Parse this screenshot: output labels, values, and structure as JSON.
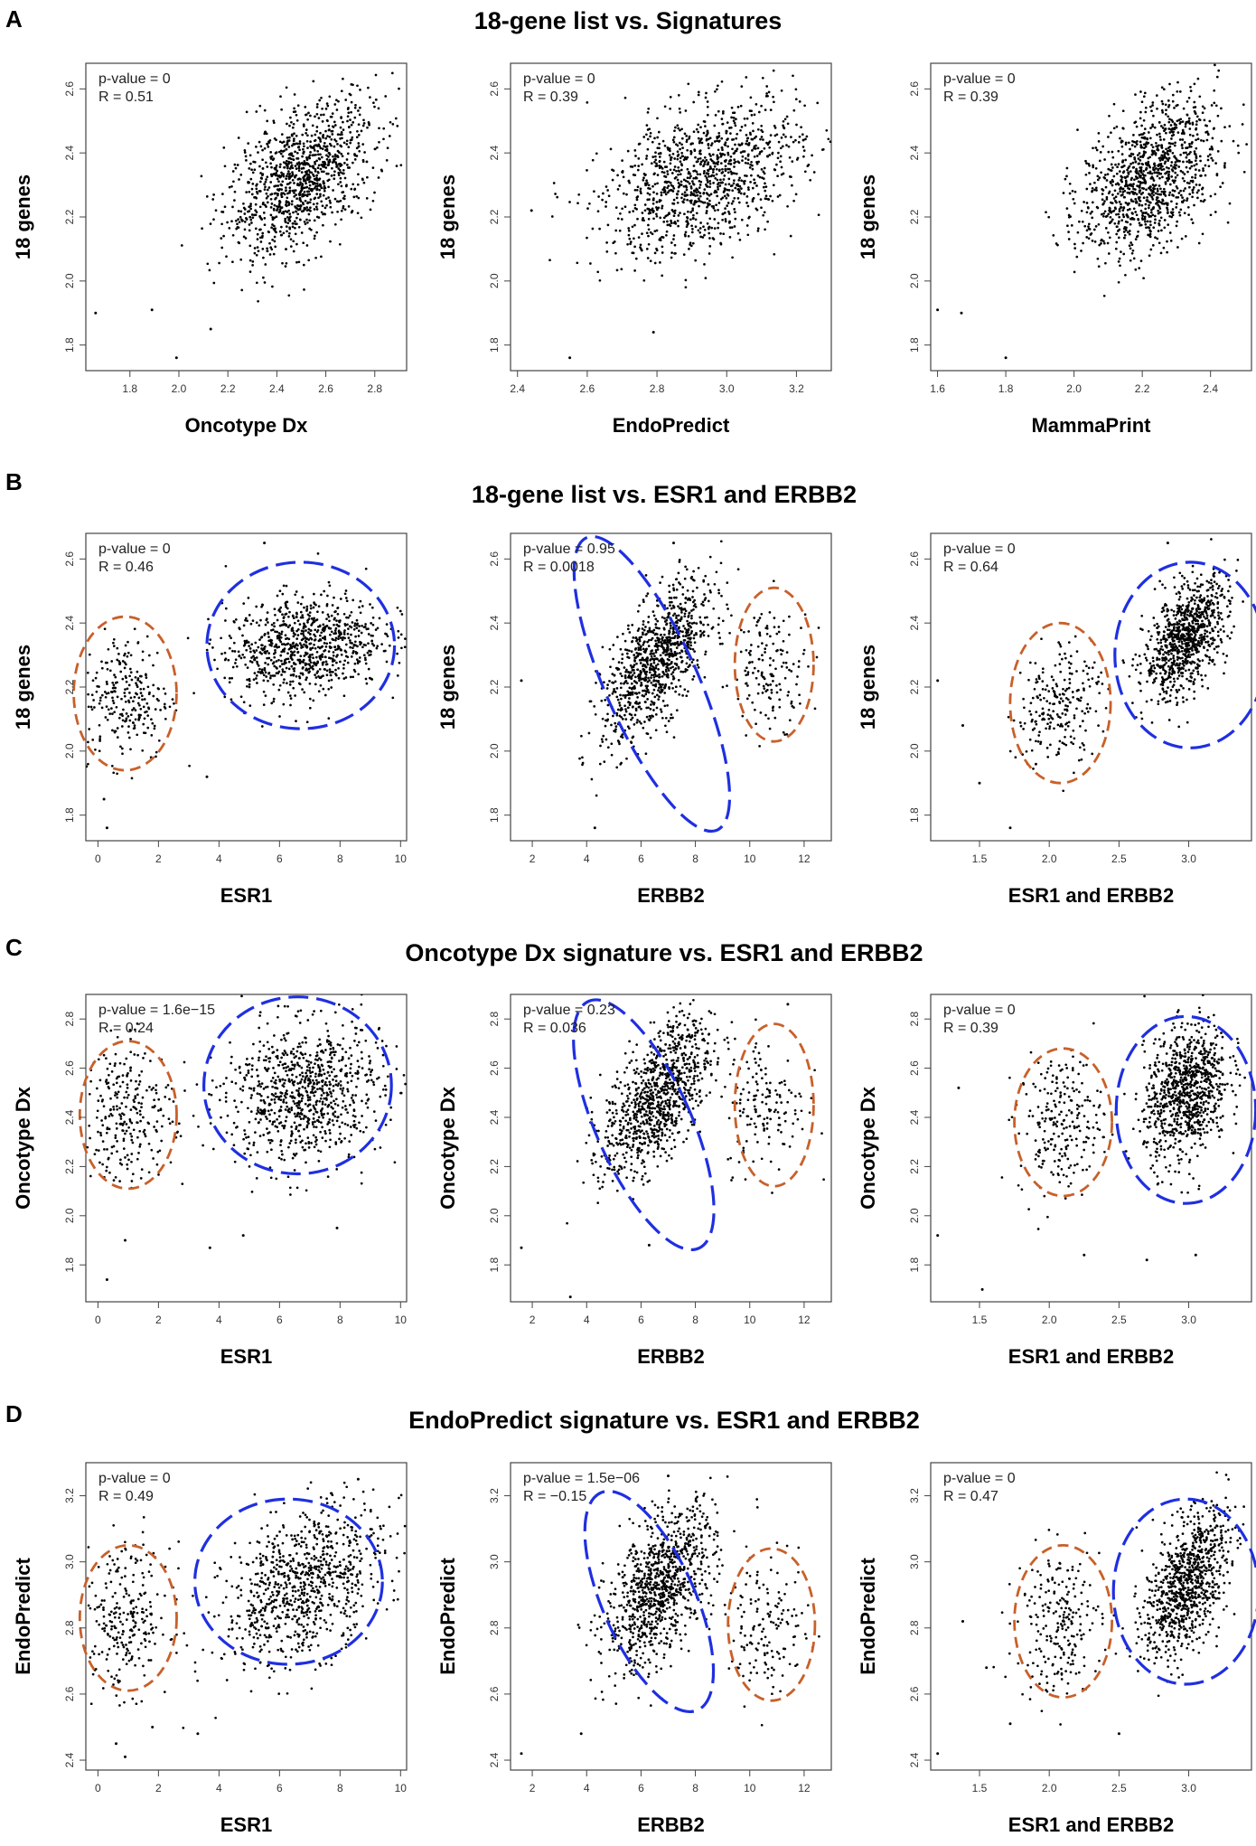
{
  "figure": {
    "rows": [
      {
        "letter": "A",
        "title": "18-gene list vs. Signatures"
      },
      {
        "letter": "B",
        "title": "18-gene list vs. ESR1 and ERBB2"
      },
      {
        "letter": "C",
        "title": "Oncotype Dx signature vs. ESR1 and ERBB2"
      },
      {
        "letter": "D",
        "title": "EndoPredict signature vs. ESR1 and ERBB2"
      }
    ]
  },
  "colors": {
    "point": "#000000",
    "blue_cluster": "#1f2fe0",
    "orange_cluster": "#c8602a",
    "frame": "#444444"
  },
  "chart_data": [
    {
      "type": "scatter",
      "row": 0,
      "col": 0,
      "xlabel": "Oncotype Dx",
      "ylabel": "18 genes",
      "xlim": [
        1.62,
        2.93
      ],
      "ylim": [
        1.72,
        2.68
      ],
      "xticks": [
        "1.8",
        "2.0",
        "2.2",
        "2.4",
        "2.6",
        "2.8"
      ],
      "xtick_values": [
        1.8,
        2.0,
        2.2,
        2.4,
        2.6,
        2.8
      ],
      "yticks": [
        "1.8",
        "2.0",
        "2.2",
        "2.4",
        "2.6"
      ],
      "ytick_values": [
        1.8,
        2.0,
        2.2,
        2.4,
        2.6
      ],
      "annotations": [
        "p-value = 0",
        "R = 0.51"
      ],
      "clusters": [
        {
          "name": "main",
          "n": 1100,
          "cx": 2.5,
          "cy": 2.32,
          "sx": 0.15,
          "sy": 0.12,
          "rho": 0.5
        }
      ],
      "outliers": [
        [
          1.66,
          1.9
        ],
        [
          1.89,
          1.91
        ],
        [
          1.99,
          1.76
        ],
        [
          2.13,
          1.85
        ]
      ]
    },
    {
      "type": "scatter",
      "row": 0,
      "col": 1,
      "xlabel": "EndoPredict",
      "ylabel": "18 genes",
      "xlim": [
        2.38,
        3.3
      ],
      "ylim": [
        1.72,
        2.68
      ],
      "xticks": [
        "2.4",
        "2.6",
        "2.8",
        "3.0",
        "3.2"
      ],
      "xtick_values": [
        2.4,
        2.6,
        2.8,
        3.0,
        3.2
      ],
      "yticks": [
        "1.8",
        "2.0",
        "2.2",
        "2.4",
        "2.6"
      ],
      "ytick_values": [
        1.8,
        2.0,
        2.2,
        2.4,
        2.6
      ],
      "annotations": [
        "p-value = 0",
        "R = 0.39"
      ],
      "clusters": [
        {
          "name": "main",
          "n": 1100,
          "cx": 2.93,
          "cy": 2.32,
          "sx": 0.14,
          "sy": 0.12,
          "rho": 0.4
        }
      ],
      "outliers": [
        [
          2.55,
          1.76
        ],
        [
          2.44,
          2.22
        ],
        [
          2.79,
          1.84
        ],
        [
          3.22,
          2.44
        ]
      ]
    },
    {
      "type": "scatter",
      "row": 0,
      "col": 2,
      "xlabel": "MammaPrint",
      "ylabel": "18 genes",
      "xlim": [
        1.58,
        2.52
      ],
      "ylim": [
        1.72,
        2.68
      ],
      "xticks": [
        "1.6",
        "1.8",
        "2.0",
        "2.2",
        "2.4"
      ],
      "xtick_values": [
        1.6,
        1.8,
        2.0,
        2.2,
        2.4
      ],
      "yticks": [
        "1.8",
        "2.0",
        "2.2",
        "2.4",
        "2.6"
      ],
      "ytick_values": [
        1.8,
        2.0,
        2.2,
        2.4,
        2.6
      ],
      "annotations": [
        "p-value = 0",
        "R = 0.39"
      ],
      "clusters": [
        {
          "name": "main",
          "n": 1100,
          "cx": 2.22,
          "cy": 2.32,
          "sx": 0.1,
          "sy": 0.12,
          "rho": 0.4
        }
      ],
      "outliers": [
        [
          1.6,
          1.91
        ],
        [
          1.67,
          1.9
        ],
        [
          1.8,
          1.76
        ]
      ]
    },
    {
      "type": "scatter",
      "row": 1,
      "col": 0,
      "xlabel": "ESR1",
      "ylabel": "18 genes",
      "xlim": [
        -0.4,
        10.2
      ],
      "ylim": [
        1.72,
        2.68
      ],
      "xticks": [
        "0",
        "2",
        "4",
        "6",
        "8",
        "10"
      ],
      "xtick_values": [
        0,
        2,
        4,
        6,
        8,
        10
      ],
      "yticks": [
        "1.8",
        "2.0",
        "2.2",
        "2.4",
        "2.6"
      ],
      "ytick_values": [
        1.8,
        2.0,
        2.2,
        2.4,
        2.6
      ],
      "annotations": [
        "p-value = 0",
        "R = 0.46"
      ],
      "clusters": [
        {
          "name": "low",
          "n": 260,
          "cx": 0.9,
          "cy": 2.17,
          "sx": 0.75,
          "sy": 0.1,
          "rho": 0.0
        },
        {
          "name": "high",
          "n": 850,
          "cx": 6.8,
          "cy": 2.33,
          "sx": 1.3,
          "sy": 0.08,
          "rho": 0.2
        }
      ],
      "outliers": [
        [
          0.3,
          1.76
        ],
        [
          0.2,
          1.85
        ],
        [
          3.6,
          1.92
        ],
        [
          5.5,
          2.65
        ]
      ],
      "ellipses": [
        {
          "color": "orange",
          "cx": 0.9,
          "cy": 2.18,
          "rx": 1.7,
          "ry": 0.24,
          "angle": 0
        },
        {
          "color": "blue",
          "cx": 6.7,
          "cy": 2.33,
          "rx": 3.1,
          "ry": 0.26,
          "angle": 0
        }
      ]
    },
    {
      "type": "scatter",
      "row": 1,
      "col": 1,
      "xlabel": "ERBB2",
      "ylabel": "18 genes",
      "xlim": [
        1.2,
        13.0
      ],
      "ylim": [
        1.72,
        2.68
      ],
      "xticks": [
        "2",
        "4",
        "6",
        "8",
        "10",
        "12"
      ],
      "xtick_values": [
        2,
        4,
        6,
        8,
        10,
        12
      ],
      "yticks": [
        "1.8",
        "2.0",
        "2.2",
        "2.4",
        "2.6"
      ],
      "ytick_values": [
        1.8,
        2.0,
        2.2,
        2.4,
        2.6
      ],
      "annotations": [
        "p-value = 0.95",
        "R = 0.0018"
      ],
      "clusters": [
        {
          "name": "main",
          "n": 960,
          "cx": 6.6,
          "cy": 2.28,
          "sx": 1.0,
          "sy": 0.12,
          "rho": 0.65
        },
        {
          "name": "amplified",
          "n": 150,
          "cx": 10.8,
          "cy": 2.26,
          "sx": 0.7,
          "sy": 0.09,
          "rho": 0.0
        }
      ],
      "outliers": [
        [
          1.6,
          2.22
        ],
        [
          4.3,
          1.76
        ],
        [
          7.2,
          2.65
        ]
      ],
      "ellipses": [
        {
          "color": "blue",
          "cx": 6.4,
          "cy": 2.21,
          "rx": 1.7,
          "ry": 0.5,
          "angle": 0.42
        },
        {
          "color": "orange",
          "cx": 10.9,
          "cy": 2.27,
          "rx": 1.45,
          "ry": 0.24,
          "angle": 0
        }
      ]
    },
    {
      "type": "scatter",
      "row": 1,
      "col": 2,
      "xlabel": "ESR1 and ERBB2",
      "ylabel": "18 genes",
      "xlim": [
        1.15,
        3.45
      ],
      "ylim": [
        1.72,
        2.68
      ],
      "xticks": [
        "1.5",
        "2.0",
        "2.5",
        "3.0"
      ],
      "xtick_values": [
        1.5,
        2.0,
        2.5,
        3.0
      ],
      "yticks": [
        "1.8",
        "2.0",
        "2.2",
        "2.4",
        "2.6"
      ],
      "ytick_values": [
        1.8,
        2.0,
        2.2,
        2.4,
        2.6
      ],
      "annotations": [
        "p-value = 0",
        "R = 0.64"
      ],
      "clusters": [
        {
          "name": "low",
          "n": 230,
          "cx": 2.07,
          "cy": 2.15,
          "sx": 0.15,
          "sy": 0.1,
          "rho": 0.3
        },
        {
          "name": "high",
          "n": 880,
          "cx": 2.98,
          "cy": 2.35,
          "sx": 0.15,
          "sy": 0.09,
          "rho": 0.5
        }
      ],
      "outliers": [
        [
          1.2,
          2.22
        ],
        [
          1.38,
          2.08
        ],
        [
          1.5,
          1.9
        ],
        [
          1.72,
          1.76
        ],
        [
          2.85,
          2.65
        ]
      ],
      "ellipses": [
        {
          "color": "orange",
          "cx": 2.08,
          "cy": 2.15,
          "rx": 0.36,
          "ry": 0.25,
          "angle": 0
        },
        {
          "color": "blue",
          "cx": 3.01,
          "cy": 2.3,
          "rx": 0.54,
          "ry": 0.29,
          "angle": 0
        }
      ]
    },
    {
      "type": "scatter",
      "row": 2,
      "col": 0,
      "xlabel": "ESR1",
      "ylabel": "Oncotype Dx",
      "xlim": [
        -0.4,
        10.2
      ],
      "ylim": [
        1.65,
        2.9
      ],
      "xticks": [
        "0",
        "2",
        "4",
        "6",
        "8",
        "10"
      ],
      "xtick_values": [
        0,
        2,
        4,
        6,
        8,
        10
      ],
      "yticks": [
        "1.8",
        "2.0",
        "2.2",
        "2.4",
        "2.6",
        "2.8"
      ],
      "ytick_values": [
        1.8,
        2.0,
        2.2,
        2.4,
        2.6,
        2.8
      ],
      "annotations": [
        "p-value = 1.6e−15",
        "R = 0.24"
      ],
      "clusters": [
        {
          "name": "low",
          "n": 260,
          "cx": 1.0,
          "cy": 2.42,
          "sx": 0.75,
          "sy": 0.14,
          "rho": 0.0
        },
        {
          "name": "high",
          "n": 850,
          "cx": 6.8,
          "cy": 2.5,
          "sx": 1.3,
          "sy": 0.14,
          "rho": 0.1
        }
      ],
      "outliers": [
        [
          0.3,
          1.74
        ],
        [
          0.9,
          1.9
        ],
        [
          3.7,
          1.87
        ],
        [
          4.8,
          1.92
        ],
        [
          7.9,
          1.95
        ]
      ],
      "ellipses": [
        {
          "color": "orange",
          "cx": 1.0,
          "cy": 2.41,
          "rx": 1.6,
          "ry": 0.3,
          "angle": 0
        },
        {
          "color": "blue",
          "cx": 6.6,
          "cy": 2.53,
          "rx": 3.1,
          "ry": 0.36,
          "angle": 0
        }
      ]
    },
    {
      "type": "scatter",
      "row": 2,
      "col": 1,
      "xlabel": "ERBB2",
      "ylabel": "Oncotype Dx",
      "xlim": [
        1.2,
        13.0
      ],
      "ylim": [
        1.65,
        2.9
      ],
      "xticks": [
        "2",
        "4",
        "6",
        "8",
        "10",
        "12"
      ],
      "xtick_values": [
        2,
        4,
        6,
        8,
        10,
        12
      ],
      "yticks": [
        "1.8",
        "2.0",
        "2.2",
        "2.4",
        "2.6",
        "2.8"
      ],
      "ytick_values": [
        1.8,
        2.0,
        2.2,
        2.4,
        2.6,
        2.8
      ],
      "annotations": [
        "p-value = 0.23",
        "R = 0.036"
      ],
      "clusters": [
        {
          "name": "main",
          "n": 960,
          "cx": 6.6,
          "cy": 2.48,
          "sx": 1.0,
          "sy": 0.16,
          "rho": 0.6
        },
        {
          "name": "amplified",
          "n": 150,
          "cx": 10.6,
          "cy": 2.45,
          "sx": 0.75,
          "sy": 0.14,
          "rho": 0.0
        }
      ],
      "outliers": [
        [
          1.6,
          1.87
        ],
        [
          3.4,
          1.67
        ],
        [
          6.3,
          1.88
        ],
        [
          11.4,
          2.86
        ]
      ],
      "ellipses": [
        {
          "color": "blue",
          "cx": 6.1,
          "cy": 2.37,
          "rx": 1.75,
          "ry": 0.55,
          "angle": 0.42
        },
        {
          "color": "orange",
          "cx": 10.9,
          "cy": 2.45,
          "rx": 1.45,
          "ry": 0.33,
          "angle": 0
        }
      ]
    },
    {
      "type": "scatter",
      "row": 2,
      "col": 2,
      "xlabel": "ESR1 and ERBB2",
      "ylabel": "Oncotype Dx",
      "xlim": [
        1.15,
        3.45
      ],
      "ylim": [
        1.65,
        2.9
      ],
      "xticks": [
        "1.5",
        "2.0",
        "2.5",
        "3.0"
      ],
      "xtick_values": [
        1.5,
        2.0,
        2.5,
        3.0
      ],
      "yticks": [
        "1.8",
        "2.0",
        "2.2",
        "2.4",
        "2.6",
        "2.8"
      ],
      "ytick_values": [
        1.8,
        2.0,
        2.2,
        2.4,
        2.6,
        2.8
      ],
      "annotations": [
        "p-value = 0",
        "R = 0.39"
      ],
      "clusters": [
        {
          "name": "low",
          "n": 230,
          "cx": 2.08,
          "cy": 2.38,
          "sx": 0.15,
          "sy": 0.14,
          "rho": 0.1
        },
        {
          "name": "high",
          "n": 880,
          "cx": 2.98,
          "cy": 2.5,
          "sx": 0.15,
          "sy": 0.14,
          "rho": 0.3
        }
      ],
      "outliers": [
        [
          1.2,
          1.92
        ],
        [
          1.35,
          2.52
        ],
        [
          1.52,
          1.7
        ],
        [
          2.7,
          1.82
        ],
        [
          3.05,
          1.84
        ],
        [
          2.25,
          1.84
        ]
      ],
      "ellipses": [
        {
          "color": "orange",
          "cx": 2.1,
          "cy": 2.38,
          "rx": 0.35,
          "ry": 0.3,
          "angle": 0
        },
        {
          "color": "blue",
          "cx": 2.98,
          "cy": 2.43,
          "rx": 0.5,
          "ry": 0.38,
          "angle": 0
        }
      ]
    },
    {
      "type": "scatter",
      "row": 3,
      "col": 0,
      "xlabel": "ESR1",
      "ylabel": "EndoPredict",
      "xlim": [
        -0.4,
        10.2
      ],
      "ylim": [
        2.37,
        3.3
      ],
      "xticks": [
        "0",
        "2",
        "4",
        "6",
        "8",
        "10"
      ],
      "xtick_values": [
        0,
        2,
        4,
        6,
        8,
        10
      ],
      "yticks": [
        "2.4",
        "2.6",
        "2.8",
        "3.0",
        "3.2"
      ],
      "ytick_values": [
        2.4,
        2.6,
        2.8,
        3.0,
        3.2
      ],
      "annotations": [
        "p-value = 0",
        "R = 0.49"
      ],
      "clusters": [
        {
          "name": "low",
          "n": 260,
          "cx": 0.9,
          "cy": 2.83,
          "sx": 0.75,
          "sy": 0.11,
          "rho": 0.0
        },
        {
          "name": "high",
          "n": 850,
          "cx": 6.8,
          "cy": 2.93,
          "sx": 1.3,
          "sy": 0.12,
          "rho": 0.4
        }
      ],
      "outliers": [
        [
          0.6,
          2.45
        ],
        [
          0.9,
          2.41
        ],
        [
          1.8,
          2.5
        ],
        [
          3.3,
          2.48
        ],
        [
          8.6,
          3.25
        ]
      ],
      "ellipses": [
        {
          "color": "orange",
          "cx": 1.0,
          "cy": 2.83,
          "rx": 1.6,
          "ry": 0.22,
          "angle": 0
        },
        {
          "color": "blue",
          "cx": 6.3,
          "cy": 2.94,
          "rx": 3.1,
          "ry": 0.25,
          "angle": 0
        }
      ]
    },
    {
      "type": "scatter",
      "row": 3,
      "col": 1,
      "xlabel": "ERBB2",
      "ylabel": "EndoPredict",
      "xlim": [
        1.2,
        13.0
      ],
      "ylim": [
        2.37,
        3.3
      ],
      "xticks": [
        "2",
        "4",
        "6",
        "8",
        "10",
        "12"
      ],
      "xtick_values": [
        2,
        4,
        6,
        8,
        10,
        12
      ],
      "yticks": [
        "2.4",
        "2.6",
        "2.8",
        "3.0",
        "3.2"
      ],
      "ytick_values": [
        2.4,
        2.6,
        2.8,
        3.0,
        3.2
      ],
      "annotations": [
        "p-value = 1.5e−06",
        "R = −0.15"
      ],
      "clusters": [
        {
          "name": "main",
          "n": 960,
          "cx": 6.7,
          "cy": 2.92,
          "sx": 1.0,
          "sy": 0.12,
          "rho": 0.55
        },
        {
          "name": "amplified",
          "n": 150,
          "cx": 10.7,
          "cy": 2.8,
          "sx": 0.75,
          "sy": 0.1,
          "rho": 0.0
        }
      ],
      "outliers": [
        [
          1.6,
          2.42
        ],
        [
          3.8,
          2.48
        ],
        [
          7.0,
          3.26
        ]
      ],
      "ellipses": [
        {
          "color": "blue",
          "cx": 6.3,
          "cy": 2.88,
          "rx": 1.7,
          "ry": 0.36,
          "angle": 0.42
        },
        {
          "color": "orange",
          "cx": 10.8,
          "cy": 2.81,
          "rx": 1.6,
          "ry": 0.23,
          "angle": 0
        }
      ]
    },
    {
      "type": "scatter",
      "row": 3,
      "col": 2,
      "xlabel": "ESR1 and ERBB2",
      "ylabel": "EndoPredict",
      "xlim": [
        1.15,
        3.45
      ],
      "ylim": [
        2.37,
        3.3
      ],
      "xticks": [
        "1.5",
        "2.0",
        "2.5",
        "3.0"
      ],
      "xtick_values": [
        1.5,
        2.0,
        2.5,
        3.0
      ],
      "yticks": [
        "2.4",
        "2.6",
        "2.8",
        "3.0",
        "3.2"
      ],
      "ytick_values": [
        2.4,
        2.6,
        2.8,
        3.0,
        3.2
      ],
      "annotations": [
        "p-value = 0",
        "R = 0.47"
      ],
      "clusters": [
        {
          "name": "low",
          "n": 230,
          "cx": 2.07,
          "cy": 2.82,
          "sx": 0.15,
          "sy": 0.11,
          "rho": 0.1
        },
        {
          "name": "high",
          "n": 880,
          "cx": 2.98,
          "cy": 2.93,
          "sx": 0.15,
          "sy": 0.11,
          "rho": 0.5
        }
      ],
      "outliers": [
        [
          1.2,
          2.42
        ],
        [
          1.38,
          2.82
        ],
        [
          1.55,
          2.68
        ],
        [
          1.72,
          2.51
        ],
        [
          2.5,
          2.48
        ]
      ],
      "ellipses": [
        {
          "color": "orange",
          "cx": 2.1,
          "cy": 2.82,
          "rx": 0.35,
          "ry": 0.23,
          "angle": 0
        },
        {
          "color": "blue",
          "cx": 2.98,
          "cy": 2.91,
          "rx": 0.52,
          "ry": 0.28,
          "angle": 0
        }
      ]
    }
  ]
}
